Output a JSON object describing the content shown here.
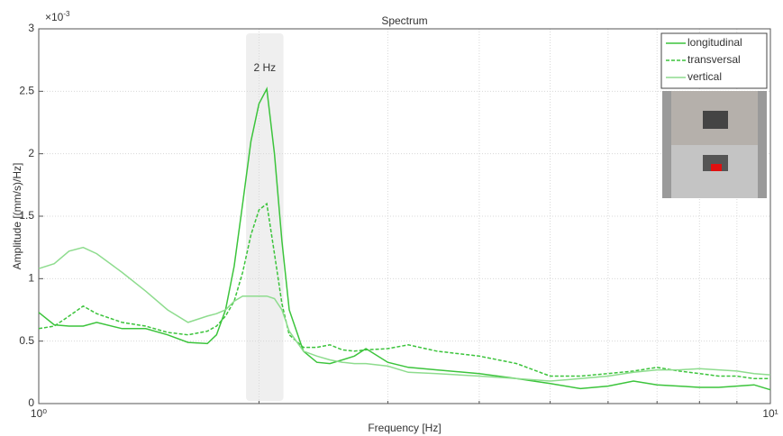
{
  "chart_data": {
    "type": "line",
    "title": "Spectrum",
    "xlabel": "Frequency [Hz]",
    "ylabel": "Amplitude [(mm/s)/Hz]",
    "y_scale_label": "×10",
    "y_scale_exponent": "-3",
    "xscale": "log",
    "xlim": [
      1,
      10
    ],
    "ylim": [
      0,
      3
    ],
    "xticks": [
      {
        "value": 1,
        "label": "10⁰"
      },
      {
        "value": 10,
        "label": "10¹"
      }
    ],
    "xminorticks": [
      2,
      3,
      4,
      5,
      6,
      7,
      8,
      9
    ],
    "yticks": [
      0,
      0.5,
      1,
      1.5,
      2,
      2.5,
      3
    ],
    "grid": true,
    "legend": "upper right",
    "highlight": {
      "range": [
        1.92,
        2.16
      ],
      "label": "2 Hz"
    },
    "x": [
      1,
      1.05,
      1.1,
      1.15,
      1.2,
      1.3,
      1.4,
      1.5,
      1.6,
      1.7,
      1.75,
      1.8,
      1.85,
      1.9,
      1.95,
      2,
      2.05,
      2.1,
      2.15,
      2.2,
      2.3,
      2.4,
      2.5,
      2.6,
      2.7,
      2.8,
      3,
      3.2,
      3.5,
      4,
      4.5,
      5,
      5.5,
      6,
      6.5,
      7,
      7.5,
      8,
      8.5,
      9,
      9.5,
      10
    ],
    "series": [
      {
        "name": "longitudinal",
        "color": "#3cc43c",
        "dash": "solid",
        "values": [
          0.73,
          0.63,
          0.62,
          0.62,
          0.65,
          0.6,
          0.6,
          0.55,
          0.49,
          0.48,
          0.55,
          0.75,
          1.1,
          1.6,
          2.1,
          2.4,
          2.52,
          2.0,
          1.3,
          0.75,
          0.42,
          0.33,
          0.32,
          0.35,
          0.38,
          0.44,
          0.33,
          0.29,
          0.27,
          0.24,
          0.2,
          0.16,
          0.12,
          0.14,
          0.18,
          0.15,
          0.14,
          0.13,
          0.13,
          0.14,
          0.15,
          0.11
        ]
      },
      {
        "name": "transversal",
        "color": "#3cc43c",
        "dash": "dashed",
        "values": [
          0.6,
          0.62,
          0.7,
          0.78,
          0.72,
          0.65,
          0.62,
          0.57,
          0.55,
          0.58,
          0.62,
          0.7,
          0.82,
          1.05,
          1.35,
          1.55,
          1.6,
          1.2,
          0.8,
          0.55,
          0.45,
          0.45,
          0.47,
          0.43,
          0.42,
          0.43,
          0.44,
          0.47,
          0.42,
          0.38,
          0.32,
          0.22,
          0.22,
          0.24,
          0.26,
          0.29,
          0.26,
          0.24,
          0.22,
          0.22,
          0.2,
          0.2
        ]
      },
      {
        "name": "vertical",
        "color": "#8edc8e",
        "dash": "solid",
        "values": [
          1.08,
          1.12,
          1.22,
          1.25,
          1.2,
          1.05,
          0.9,
          0.75,
          0.65,
          0.7,
          0.72,
          0.75,
          0.82,
          0.86,
          0.86,
          0.86,
          0.86,
          0.84,
          0.75,
          0.58,
          0.42,
          0.38,
          0.35,
          0.33,
          0.32,
          0.32,
          0.3,
          0.25,
          0.24,
          0.22,
          0.2,
          0.18,
          0.2,
          0.22,
          0.25,
          0.27,
          0.27,
          0.28,
          0.27,
          0.26,
          0.24,
          0.23
        ]
      }
    ]
  }
}
